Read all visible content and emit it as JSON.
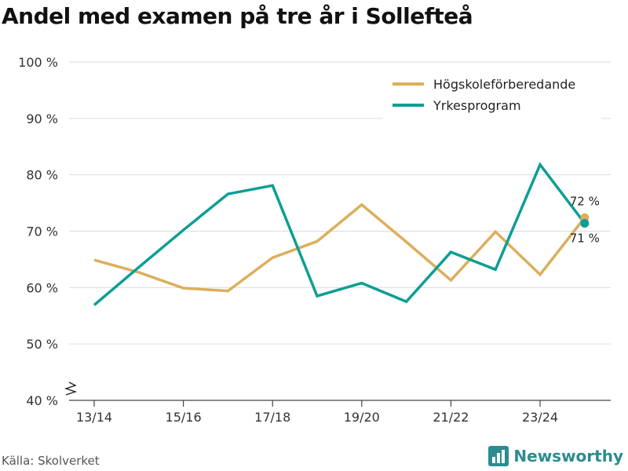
{
  "title": "Andel med examen på tre år i Sollefteå",
  "source": "Källa: Skolverket",
  "brand": {
    "name": "Newsworthy",
    "icon": "bar-chart-logo-icon",
    "color": "#2c8c8f"
  },
  "colors": {
    "hogskole": "#dcae5c",
    "yrkes": "#0e9e94",
    "grid": "#dcdcdc"
  },
  "chart_data": {
    "type": "line",
    "title": "Andel med examen på tre år i Sollefteå",
    "x": [
      "13/14",
      "14/15",
      "15/16",
      "16/17",
      "17/18",
      "18/19",
      "19/20",
      "20/21",
      "21/22",
      "22/23",
      "23/24",
      "24/25"
    ],
    "x_tick_labels": [
      "13/14",
      "15/16",
      "17/18",
      "19/20",
      "21/22",
      "23/24"
    ],
    "y_tick_labels": [
      "40 %",
      "50 %",
      "60 %",
      "70 %",
      "80 %",
      "90 %",
      "100 %"
    ],
    "ylim": [
      40,
      100
    ],
    "legend_position": "top-right",
    "series": [
      {
        "name": "Högskoleförberedande",
        "color": "#dcae5c",
        "values": [
          64.9,
          62.7,
          59.9,
          59.4,
          65.3,
          68.2,
          74.7,
          68.1,
          61.3,
          69.9,
          62.3,
          72.4
        ],
        "end_label": "72 %"
      },
      {
        "name": "Yrkesprogram",
        "color": "#0e9e94",
        "values": [
          56.9,
          63.6,
          70.2,
          76.6,
          78.1,
          58.5,
          60.8,
          57.5,
          66.3,
          63.2,
          81.8,
          71.4
        ],
        "end_label": "71 %"
      }
    ]
  }
}
